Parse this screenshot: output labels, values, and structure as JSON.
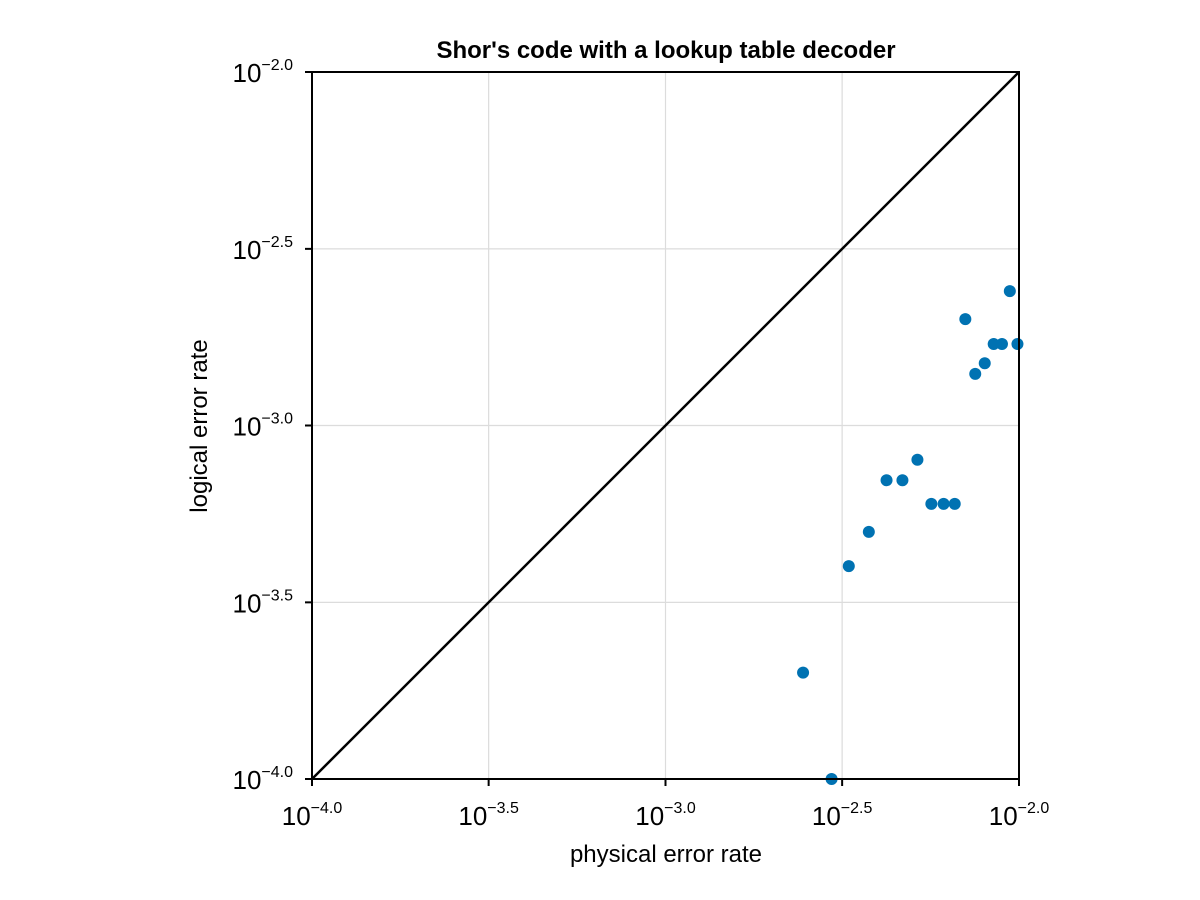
{
  "chart_data": {
    "type": "scatter",
    "title": "Shor's code with a lookup table decoder",
    "xlabel": "physical error rate",
    "ylabel": "logical error rate",
    "xscale": "log10",
    "yscale": "log10",
    "xlim": [
      0.0001,
      0.01
    ],
    "ylim": [
      0.0001,
      0.01
    ],
    "grid": true,
    "tick_base": "10",
    "x_ticks": [
      {
        "value": 0.0001,
        "base": "10",
        "exp": "−4.0"
      },
      {
        "value": 0.000316,
        "base": "10",
        "exp": "−3.5"
      },
      {
        "value": 0.001,
        "base": "10",
        "exp": "−3.0"
      },
      {
        "value": 0.00316,
        "base": "10",
        "exp": "−2.5"
      },
      {
        "value": 0.01,
        "base": "10",
        "exp": "−2.0"
      }
    ],
    "y_ticks": [
      {
        "value": 0.0001,
        "base": "10",
        "exp": "−4.0"
      },
      {
        "value": 0.000316,
        "base": "10",
        "exp": "−3.5"
      },
      {
        "value": 0.001,
        "base": "10",
        "exp": "−3.0"
      },
      {
        "value": 0.00316,
        "base": "10",
        "exp": "−2.5"
      },
      {
        "value": 0.01,
        "base": "10",
        "exp": "−2.0"
      }
    ],
    "reference_line": {
      "type": "y=x",
      "color": "#000000"
    },
    "series": [
      {
        "color": "#0072b2",
        "points": [
          {
            "x": 0.00245,
            "y": 0.0002
          },
          {
            "x": 0.00295,
            "y": 0.0001
          },
          {
            "x": 0.0033,
            "y": 0.0004
          },
          {
            "x": 0.00376,
            "y": 0.0005
          },
          {
            "x": 0.00422,
            "y": 0.0007
          },
          {
            "x": 0.00468,
            "y": 0.0007
          },
          {
            "x": 0.00516,
            "y": 0.0008
          },
          {
            "x": 0.00565,
            "y": 0.0006
          },
          {
            "x": 0.00612,
            "y": 0.0006
          },
          {
            "x": 0.00658,
            "y": 0.0006
          },
          {
            "x": 0.00705,
            "y": 0.002
          },
          {
            "x": 0.00752,
            "y": 0.0014
          },
          {
            "x": 0.008,
            "y": 0.0015
          },
          {
            "x": 0.00848,
            "y": 0.0017
          },
          {
            "x": 0.00895,
            "y": 0.0017
          },
          {
            "x": 0.00942,
            "y": 0.0024
          },
          {
            "x": 0.0099,
            "y": 0.0017
          }
        ]
      }
    ]
  }
}
